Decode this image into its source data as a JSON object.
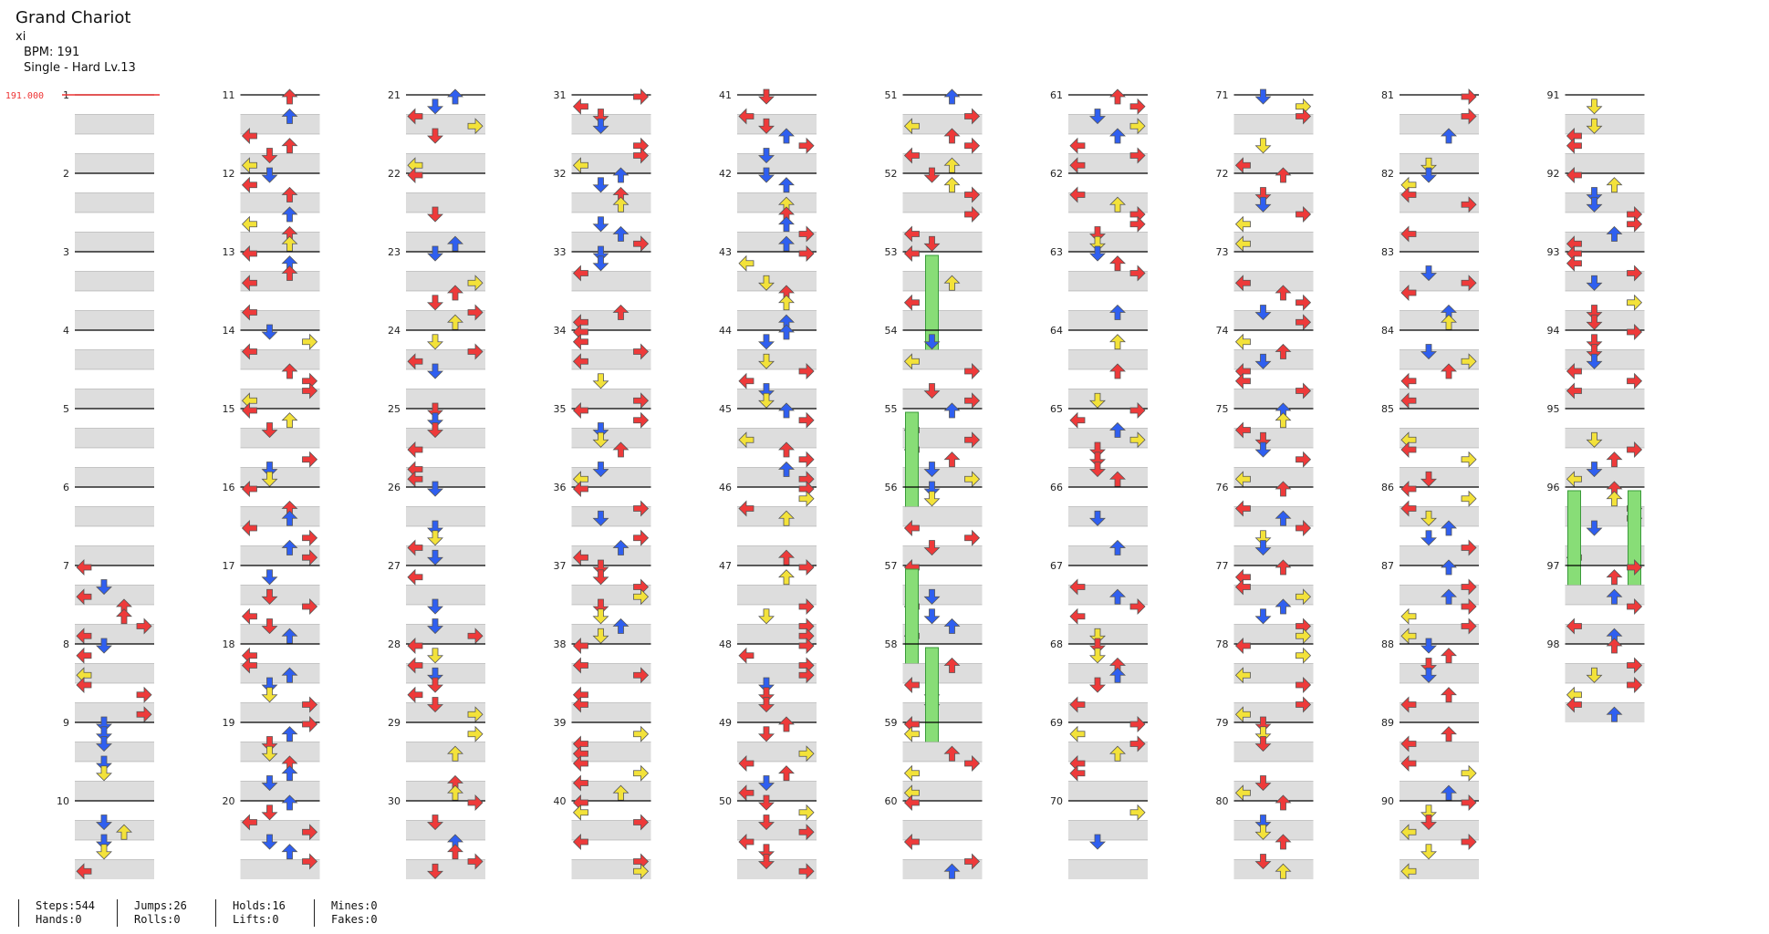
{
  "song": {
    "title": "Grand Chariot",
    "artist": "xi",
    "bpm_label": "BPM: 191",
    "chart_label": "Single - Hard  Lv.13",
    "bpm_marker": "191.000"
  },
  "colors": {
    "red": "#ee3a3a",
    "blue": "#2f5ff0",
    "yellow": "#f3e23a",
    "hold": "#88dd77",
    "lane_shade": "#dddddd",
    "measure_line": "#000000"
  },
  "measures": {
    "first": 1,
    "last": 98
  },
  "stats": {
    "steps": "Steps:544",
    "jumps": "Jumps:26",
    "holds": "Holds:16",
    "mines": "Mines:0",
    "hands": "Hands:0",
    "rolls": "Rolls:0",
    "lifts": "Lifts:0",
    "fakes": "Fakes:0"
  }
}
